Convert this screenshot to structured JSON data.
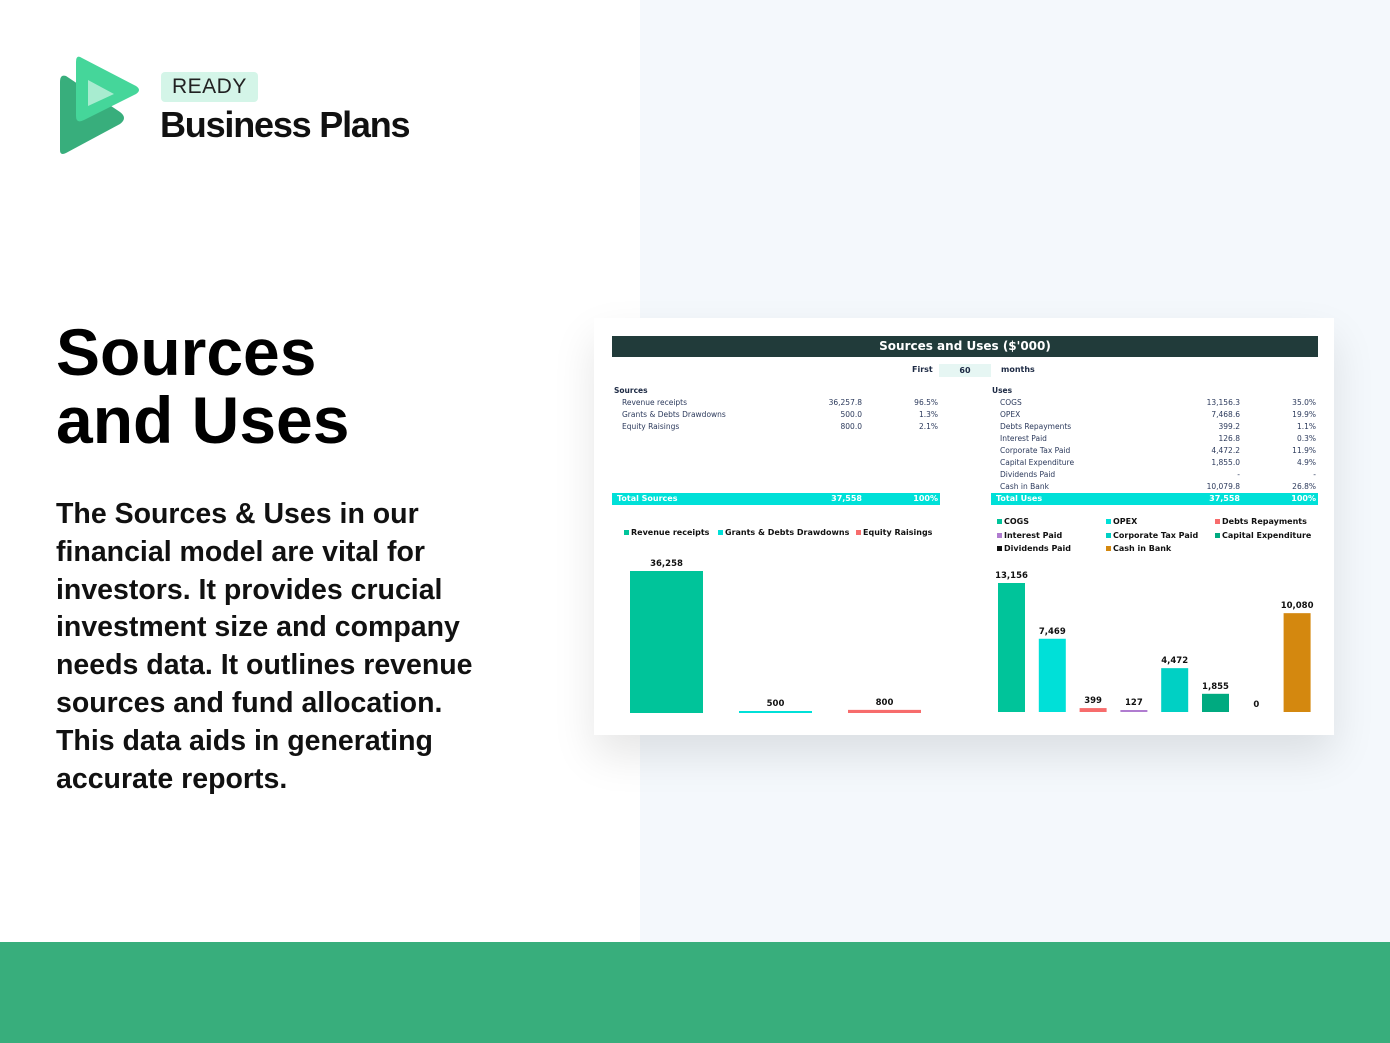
{
  "brand": {
    "badge": "READY",
    "name": "Business Plans"
  },
  "hero": {
    "title_line1": "Sources",
    "title_line2": "and Uses",
    "description": "The Sources & Uses in our financial model are vital for investors. It provides crucial investment size and company needs data. It outlines revenue sources and fund allocation. This data aids in generating accurate reports."
  },
  "sheet": {
    "title": "Sources and Uses ($'000)",
    "first_label": "First",
    "first_value": "60",
    "months_label": "months",
    "sources": {
      "heading": "Sources",
      "rows": [
        {
          "label": "Revenue receipts",
          "value": "36,257.8",
          "pct": "96.5%"
        },
        {
          "label": "Grants & Debts Drawdowns",
          "value": "500.0",
          "pct": "1.3%"
        },
        {
          "label": "Equity Raisings",
          "value": "800.0",
          "pct": "2.1%"
        }
      ],
      "total": {
        "label": "Total Sources",
        "value": "37,558",
        "pct": "100%"
      }
    },
    "uses": {
      "heading": "Uses",
      "rows": [
        {
          "label": "COGS",
          "value": "13,156.3",
          "pct": "35.0%"
        },
        {
          "label": "OPEX",
          "value": "7,468.6",
          "pct": "19.9%"
        },
        {
          "label": "Debts Repayments",
          "value": "399.2",
          "pct": "1.1%"
        },
        {
          "label": "Interest Paid",
          "value": "126.8",
          "pct": "0.3%"
        },
        {
          "label": "Corporate Tax Paid",
          "value": "4,472.2",
          "pct": "11.9%"
        },
        {
          "label": "Capital Expenditure",
          "value": "1,855.0",
          "pct": "4.9%"
        },
        {
          "label": "Dividends Paid",
          "value": "-",
          "pct": "-"
        },
        {
          "label": "Cash in Bank",
          "value": "10,079.8",
          "pct": "26.8%"
        }
      ],
      "total": {
        "label": "Total Uses",
        "value": "37,558",
        "pct": "100%"
      }
    }
  },
  "chart_data": [
    {
      "type": "bar",
      "categories": [
        "Revenue receipts",
        "Grants & Debts Drawdowns",
        "Equity Raisings"
      ],
      "values": [
        36258,
        500,
        800
      ],
      "labels": [
        "36,258",
        "500",
        "800"
      ],
      "colors": [
        "#00c49a",
        "#00e0d8",
        "#f76c6c"
      ],
      "legend": "top"
    },
    {
      "type": "bar",
      "categories": [
        "COGS",
        "OPEX",
        "Debts Repayments",
        "Interest Paid",
        "Corporate Tax Paid",
        "Capital Expenditure",
        "Dividends Paid",
        "Cash in Bank"
      ],
      "values": [
        13156,
        7469,
        399,
        127,
        4472,
        1855,
        0,
        10080
      ],
      "labels": [
        "13,156",
        "7,469",
        "399",
        "127",
        "4,472",
        "1,855",
        "0",
        "10,080"
      ],
      "colors": [
        "#00c49a",
        "#00e0d8",
        "#f76c6c",
        "#b07cd0",
        "#00d0c4",
        "#00aa80",
        "#111111",
        "#d4880f"
      ],
      "legend": "top"
    }
  ]
}
